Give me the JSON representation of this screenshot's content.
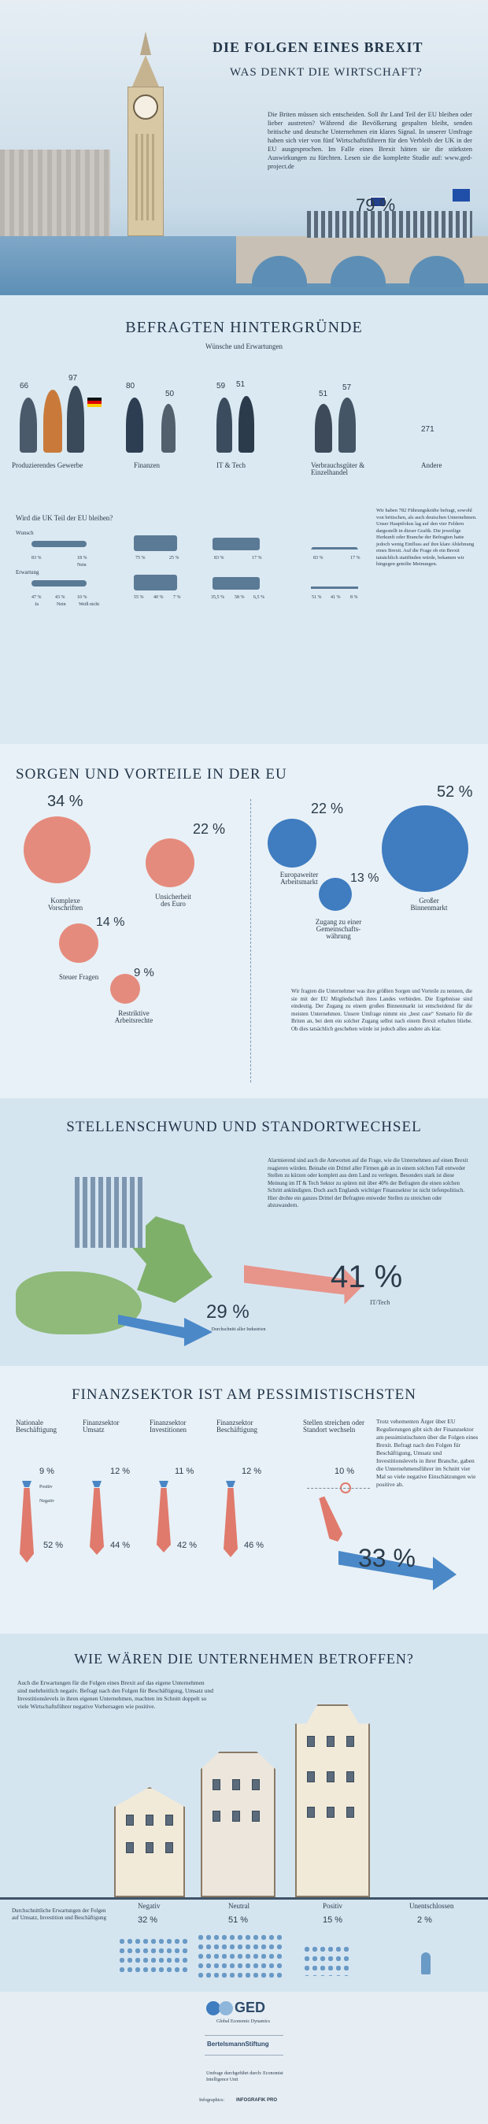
{
  "header": {
    "title": "DIE FOLGEN EINES BREXIT",
    "subtitle": "WAS DENKT DIE WIRTSCHAFT?",
    "intro": "Die Briten müssen sich entscheiden. Soll ihr Land Teil der EU bleiben oder lieber austreten? Während die Bevölkerung gespalten bleibt, senden britische und deutsche Unternehmen ein klares Signal. In unserer Umfrage haben sich vier von fünf Wirtschaftsführern für den Verbleib der UK in der EU ausgesprochen. Im Falle eines Brexit hätten sie die stärksten Auswirkungen zu fürchten. Lesen sie die komplette Studie auf: www.ged-project.de",
    "pct": "79 %"
  },
  "section1": {
    "title": "BEFRAGTEN HINTERGRÜNDE",
    "subtitle": "Wünsche und Erwartungen",
    "groups": [
      {
        "label": "Produzierendes Gewerbe",
        "n1": "66",
        "n2": "97"
      },
      {
        "label": "Finanzen",
        "n1": "80",
        "n2": "50"
      },
      {
        "label": "IT & Tech",
        "n1": "59",
        "n2": "51"
      },
      {
        "label": "Verbrauchsgüter & Einzelhandel",
        "n1": "51",
        "n2": "57"
      },
      {
        "label": "Andere",
        "n1": "271",
        "n2": ""
      }
    ],
    "question": "Wird die UK Teil der EU bleiben?",
    "wunsch_label": "Wunsch",
    "erwartung_label": "Erwartung",
    "wunsch": [
      "83 %",
      "18 %",
      "75 %",
      "25 %",
      "83 %",
      "17 %",
      "83 %",
      "17 %"
    ],
    "wunsch_no": "Nein",
    "erwartung": [
      "47 %",
      "43 %",
      "10 %",
      "55 %",
      "40 %",
      "7 %",
      "35,5 %",
      "58 %",
      "6,5 %",
      "51 %",
      "41 %",
      "8 %"
    ],
    "erwartung_labels": [
      "Ja",
      "Nein",
      "Weiß nicht"
    ],
    "note": "Wir haben 782 Führungskräfte befragt, sowohl von britischen, als auch deutschen Unternehmen. Unser Hauptfokus lag auf den vier Feldern dargestellt in dieser Grafik. Die jeweilige Herkunft oder Branche der Befragten hatte jedoch wenig Einfluss auf ihre klare Ablehnung eines Brexit. Auf die Frage ob ein Brexit tatsächlich stattfinden würde, bekamen wir hingegen geteilte Meinungen."
  },
  "section2": {
    "title": "SORGEN UND VORTEILE IN DER EU",
    "left": [
      {
        "pct": "34 %",
        "label": "Komplexe Vorschriften"
      },
      {
        "pct": "22 %",
        "label": "Unsicherheit des Euro"
      },
      {
        "pct": "14 %",
        "label": "Steuer Fragen"
      },
      {
        "pct": "9 %",
        "label": "Restriktive Arbeitsrechte"
      }
    ],
    "right": [
      {
        "pct": "22 %",
        "label": "Europaweiter Arbeitsmarkt"
      },
      {
        "pct": "52 %",
        "label": "Großer Binnenmarkt"
      },
      {
        "pct": "13 %",
        "label": "Zugang zu einer Gemeinschafts-währung"
      }
    ],
    "note": "Wir fragten die Unternehmer was ihre größten Sorgen und Vorteile zu nennen, die sie mit der EU Mitgliedschaft ihres Landes verbinden. Die Ergebnisse sind eindeutig. Der Zugang zu einem großen Binnenmarkt ist entscheidend für die meisten Unternehmen. Unsere Umfrage nimmt ein „best case“ Szenario für die Briten an, bei dem ein solcher Zugang selbst nach einem Brexit erhalten bliebe. Ob dies tatsächlich geschehen würde ist jedoch alles andere als klar."
  },
  "section3": {
    "title": "STELLENSCHWUND UND STANDORTWECHSEL",
    "note": "Alarmierend sind auch die Antworten auf die Frage, wie die Unternehmen auf einen Brexit reagieren würden. Beinahe ein Drittel aller Firmen gab an in einem solchen Fall entweder Stellen zu kürzen oder komplett aus dem Land zu verlegen. Besonders stark ist diese Meinung im IT & Tech Sektor zu spüren mit über 40% der Befragten die einen solchen Schritt ankündigten. Doch auch Englands wichtiger Finanzsektor ist nicht tiefenpolitisch. Hier drohte ein ganzes Drittel der Befragten entweder Stellen zu streichen oder abzuwandern.",
    "pct_big": "41 %",
    "pct_big_label": "IT/Tech",
    "pct_small": "29 %",
    "pct_small_label": "Durchschnitt aller Industrien"
  },
  "section4": {
    "title": "FINANZSEKTOR IST AM PESSIMISTISCHSTEN",
    "cols": [
      {
        "label": "Nationale Beschäftigung",
        "top": "9 %",
        "bottom": "52 %"
      },
      {
        "label": "Finanzsektor Umsatz",
        "top": "12 %",
        "bottom": "44 %"
      },
      {
        "label": "Finanzsektor Investitionen",
        "top": "11 %",
        "bottom": "42 %"
      },
      {
        "label": "Finanzsektor Beschäftigung",
        "top": "12 %",
        "bottom": "46 %"
      },
      {
        "label": "Stellen streichen oder Standort wechseln",
        "top": "10 %",
        "bottom": "33 %"
      }
    ],
    "positive": "Positiv",
    "negative": "Negativ",
    "note": "Trotz vehementen Ärger über EU Regulierungen gibt sich der Finanzsektor am pessimistischsten über die Folgen eines Brexit. Befragt nach den Folgen für Beschäftigung, Umsatz und Investitionslevels in ihrer Branche, gaben die Unternehmensführer im Schnitt vier Mal so viele negative Einschätzungen wie positive ab."
  },
  "section5": {
    "title": "WIE WÄREN DIE UNTERNEHMEN BETROFFEN?",
    "note": "Auch die Erwartungen für die Folgen eines Brexit auf das eigene Unternehmen sind mehrheitlich negativ. Befragt nach den Folgen für Beschäftigung, Umsatz und Investitionslevels in ihren eigenen Unternehmen, machten im Schnitt doppelt so viele Wirtschaftsführer negative Vorhersagen wie positive.",
    "caption": "Durchschnittliche Erwartungen der Folgen auf Umsatz, Investition und Beschäftigung",
    "cats": [
      {
        "label": "Negativ",
        "pct": "32 %"
      },
      {
        "label": "Neutral",
        "pct": "51 %"
      },
      {
        "label": "Positiv",
        "pct": "15 %"
      },
      {
        "label": "Unentschlossen",
        "pct": "2 %"
      }
    ]
  },
  "footer": {
    "ged": "GED",
    "ged_sub": "Global Economic Dynamics",
    "bertelsmann": "BertelsmannStiftung",
    "survey": "Umfrage durchgeführt durch: Economist Intelligence Unit",
    "infographics": "Infographics:",
    "infografik": "INFOGRAFIK PRO"
  }
}
